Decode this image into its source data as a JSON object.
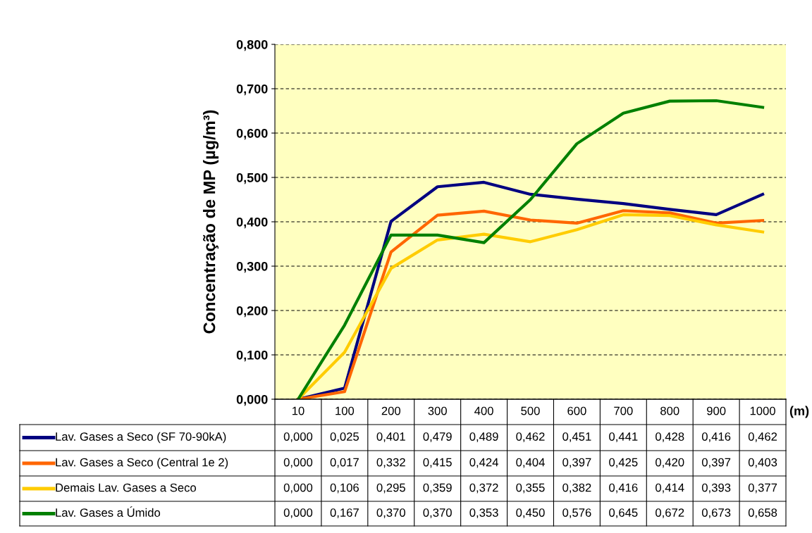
{
  "chart_data": {
    "type": "line",
    "xlabel": "(m)",
    "ylabel": "Concentração de MP (µg/m³)",
    "categories": [
      "10",
      "100",
      "200",
      "300",
      "400",
      "500",
      "600",
      "700",
      "800",
      "900",
      "1000"
    ],
    "series": [
      {
        "name": "Lav. Gases a Seco (SF 70-90kA)",
        "color": "#000080",
        "values": [
          0.0,
          0.025,
          0.401,
          0.479,
          0.489,
          0.462,
          0.451,
          0.441,
          0.428,
          0.416,
          0.462
        ],
        "value_labels": [
          "0,000",
          "0,025",
          "0,401",
          "0,479",
          "0,489",
          "0,462",
          "0,451",
          "0,441",
          "0,428",
          "0,416",
          "0,462"
        ]
      },
      {
        "name": "Lav. Gases a Seco (Central 1e 2)",
        "color": "#ff6600",
        "values": [
          0.0,
          0.017,
          0.332,
          0.415,
          0.424,
          0.404,
          0.397,
          0.425,
          0.42,
          0.397,
          0.403
        ],
        "value_labels": [
          "0,000",
          "0,017",
          "0,332",
          "0,415",
          "0,424",
          "0,404",
          "0,397",
          "0,425",
          "0,420",
          "0,397",
          "0,403"
        ]
      },
      {
        "name": "Demais Lav. Gases a Seco",
        "color": "#ffcc00",
        "values": [
          0.0,
          0.106,
          0.295,
          0.359,
          0.372,
          0.355,
          0.382,
          0.416,
          0.414,
          0.393,
          0.377
        ],
        "value_labels": [
          "0,000",
          "0,106",
          "0,295",
          "0,359",
          "0,372",
          "0,355",
          "0,382",
          "0,416",
          "0,414",
          "0,393",
          "0,377"
        ]
      },
      {
        "name": "Lav. Gases a Úmido",
        "color": "#008000",
        "values": [
          0.0,
          0.167,
          0.37,
          0.37,
          0.353,
          0.45,
          0.576,
          0.645,
          0.672,
          0.673,
          0.658
        ],
        "value_labels": [
          "0,000",
          "0,167",
          "0,370",
          "0,370",
          "0,353",
          "0,450",
          "0,576",
          "0,645",
          "0,672",
          "0,673",
          "0,658"
        ]
      }
    ],
    "ylim": [
      0,
      0.8
    ],
    "yticks": [
      {
        "value": 0,
        "label": "0,000"
      },
      {
        "value": 0.1,
        "label": "0,100"
      },
      {
        "value": 0.2,
        "label": "0,200"
      },
      {
        "value": 0.3,
        "label": "0,300"
      },
      {
        "value": 0.4,
        "label": "0,400"
      },
      {
        "value": 0.5,
        "label": "0,500"
      },
      {
        "value": 0.6,
        "label": "0,600"
      },
      {
        "value": 0.7,
        "label": "0,700"
      },
      {
        "value": 0.8,
        "label": "0,800"
      }
    ],
    "grid": "y",
    "legend": "bottom",
    "marker": "none",
    "line_style": "solid"
  }
}
